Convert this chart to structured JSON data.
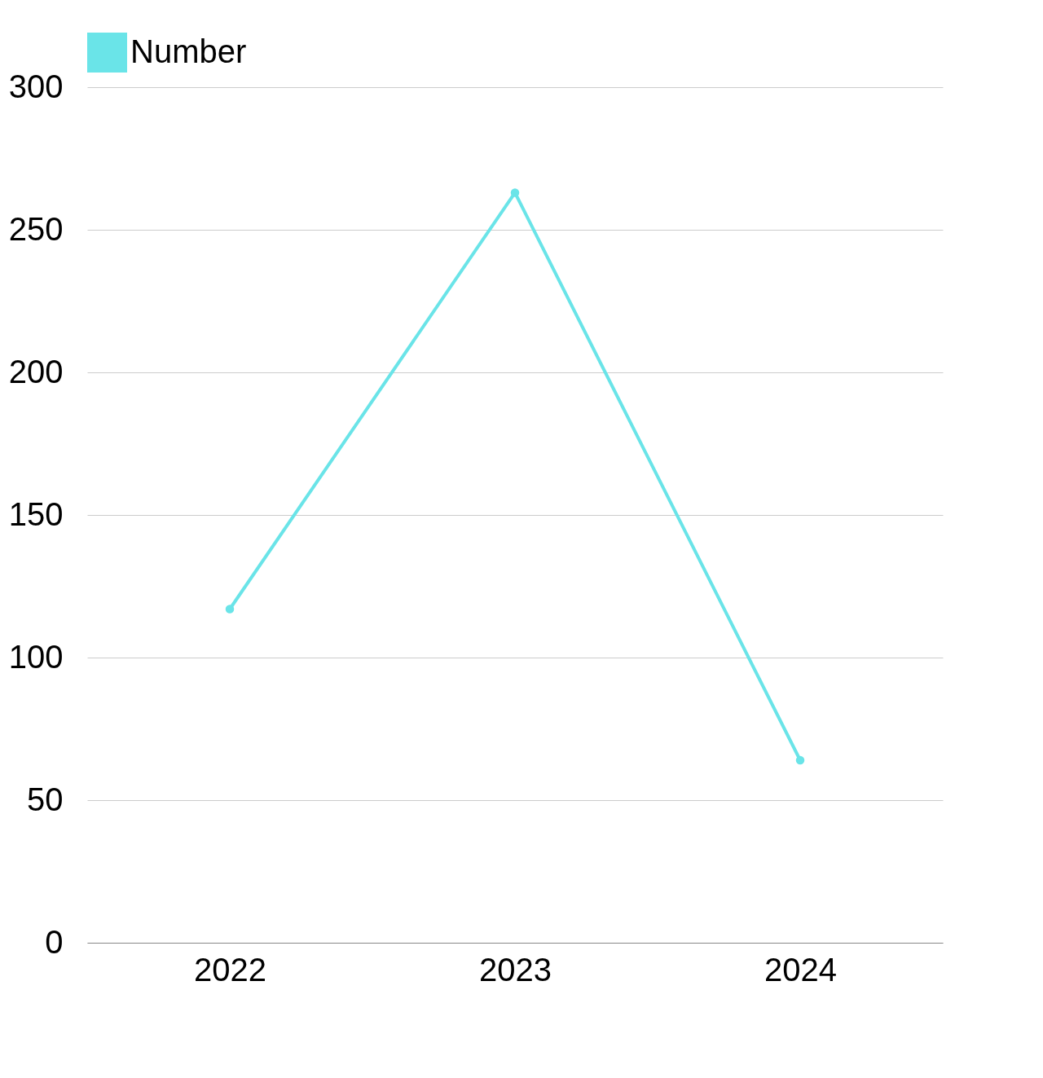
{
  "chart_data": {
    "type": "line",
    "categories": [
      "2022",
      "2023",
      "2024"
    ],
    "series": [
      {
        "name": "Number",
        "color": "#6ae4e8",
        "values": [
          117,
          263,
          64
        ]
      }
    ],
    "ylim": [
      0,
      300
    ],
    "yticks": [
      0,
      50,
      100,
      150,
      200,
      250,
      300
    ],
    "grid": "y",
    "legend": "top",
    "marker": "circle",
    "line_style": "solid"
  }
}
